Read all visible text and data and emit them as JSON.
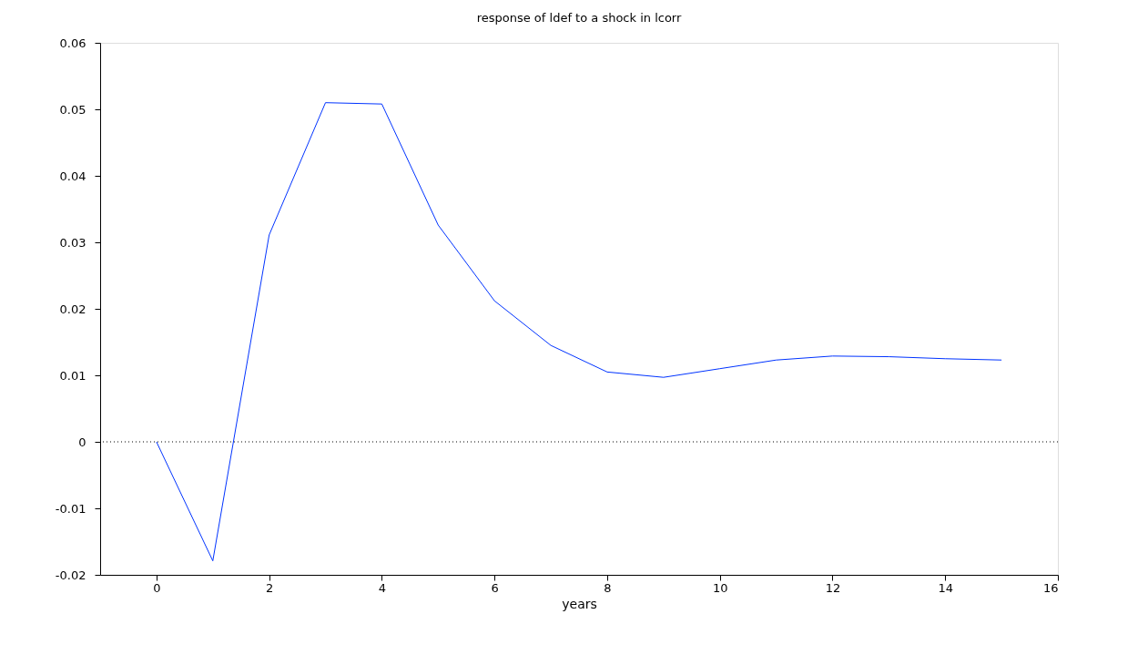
{
  "chart_data": {
    "type": "line",
    "title": "response of ldef to a shock in lcorr",
    "xlabel": "years",
    "x": [
      0,
      1,
      2,
      3,
      4,
      5,
      6,
      7,
      8,
      9,
      10,
      11,
      12,
      13,
      14,
      15
    ],
    "series": [
      {
        "color": "#0033ff",
        "values": [
          0,
          -0.0179,
          0.0311,
          0.051,
          0.0508,
          0.0326,
          0.0212,
          0.0145,
          0.0105,
          0.0097,
          0.011,
          0.0123,
          0.0129,
          0.0128,
          0.0125,
          0.0123
        ]
      }
    ],
    "xlim": [
      -1,
      16
    ],
    "xticks": [
      0,
      2,
      4,
      6,
      8,
      10,
      12,
      14,
      16
    ],
    "ylim": [
      -0.02,
      0.06
    ],
    "yticks": [
      -0.02,
      -0.01,
      0,
      0.01,
      0.02,
      0.03,
      0.04,
      0.05,
      0.06
    ],
    "ref_lines": [
      {
        "axis": "y",
        "value": 0,
        "color": "#000000",
        "line_style": "dotted"
      }
    ],
    "grid": false,
    "marker": "none",
    "line_style": "solid"
  }
}
